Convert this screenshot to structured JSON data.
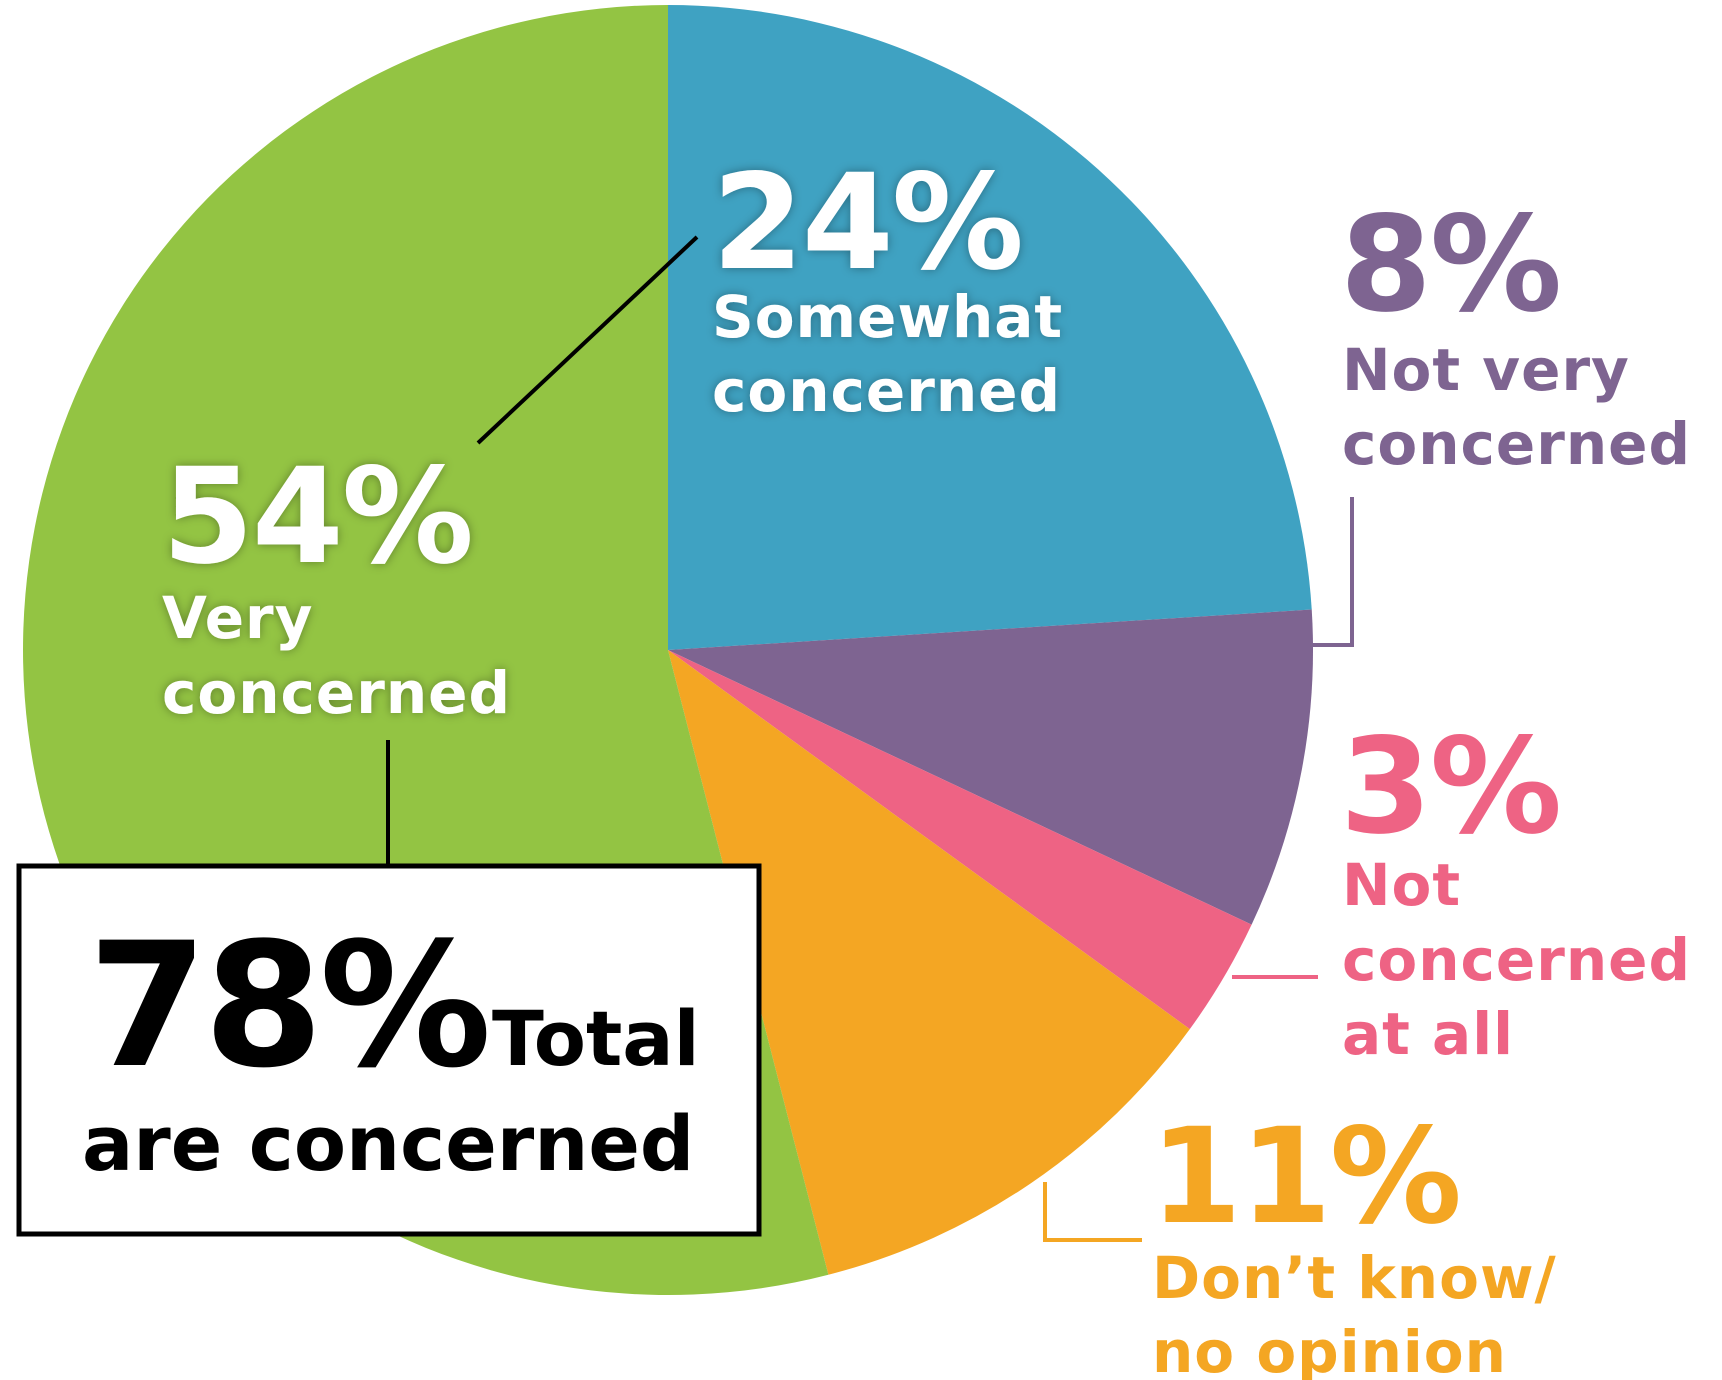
{
  "chart_data": {
    "type": "pie",
    "slices": [
      {
        "key": "somewhat",
        "pct_label": "24%",
        "value": 24,
        "label_lines": [
          "Somewhat",
          "concerned"
        ],
        "color": "#3FA2C2",
        "label_color": "#ffffff"
      },
      {
        "key": "not_very",
        "pct_label": "8%",
        "value": 8,
        "label_lines": [
          "Not very",
          "concerned"
        ],
        "color": "#7E6491",
        "label_color": "#7E6491"
      },
      {
        "key": "not_at_all",
        "pct_label": "3%",
        "value": 3,
        "label_lines": [
          "Not",
          "concerned",
          "at all"
        ],
        "color": "#EE6384",
        "label_color": "#EE6384"
      },
      {
        "key": "dont_know",
        "pct_label": "11%",
        "value": 11,
        "label_lines": [
          "Don’t know/",
          "no opinion"
        ],
        "color": "#F4A623",
        "label_color": "#F4A623"
      },
      {
        "key": "very",
        "pct_label": "54%",
        "value": 54,
        "label_lines": [
          "Very",
          "concerned"
        ],
        "color": "#93C443",
        "label_color": "#ffffff"
      }
    ],
    "total_callout": {
      "value_label": "78%",
      "value": 78,
      "word": "Total",
      "line2": "are concerned"
    }
  }
}
